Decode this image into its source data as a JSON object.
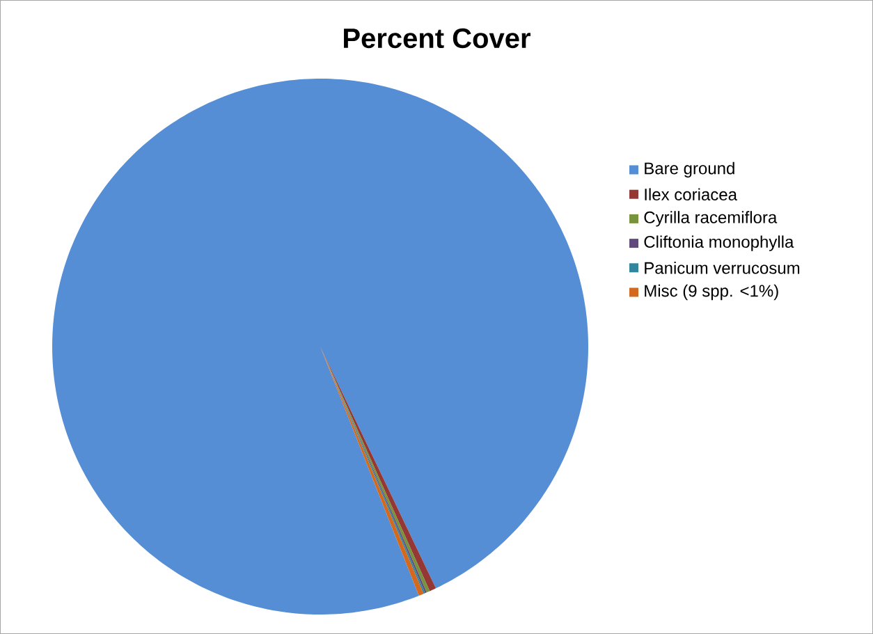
{
  "chart_data": {
    "type": "pie",
    "title": "Percent Cover",
    "categories": [
      "Bare ground",
      "Ilex coriacea",
      "Cyrilla racemiflora",
      "Cliftonia monophylla",
      "Panicum verrucosum",
      "Misc (9 spp. <1%)"
    ],
    "values": [
      98.9,
      0.4,
      0.2,
      0.1,
      0.1,
      0.3
    ],
    "colors": [
      "#558ed5",
      "#953735",
      "#77933c",
      "#604a7b",
      "#31859c",
      "#d2691e"
    ],
    "legend": "right"
  }
}
